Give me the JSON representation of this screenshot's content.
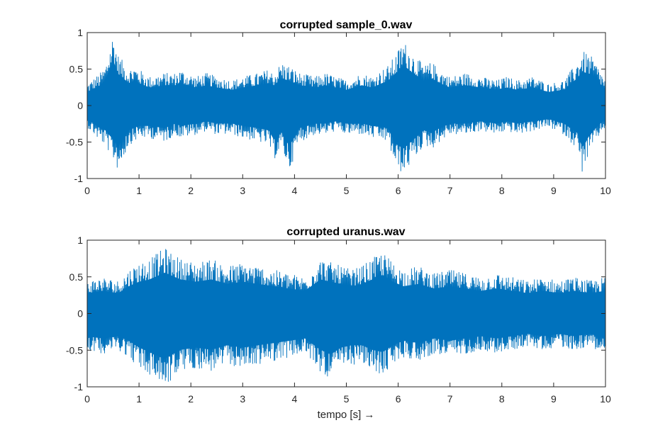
{
  "colors": {
    "signal": "#0072BD",
    "axis": "#262626",
    "background": "#ffffff"
  },
  "chart_data": [
    {
      "type": "line",
      "title": "corrupted sample_0.wav",
      "xlabel": "",
      "ylabel": "",
      "xlim": [
        0,
        10
      ],
      "ylim": [
        -1,
        1
      ],
      "xticks": [
        0,
        1,
        2,
        3,
        4,
        5,
        6,
        7,
        8,
        9,
        10
      ],
      "xtick_labels": [
        "0",
        "1",
        "2",
        "3",
        "4",
        "5",
        "6",
        "7",
        "8",
        "9",
        "10"
      ],
      "yticks": [
        -1,
        -0.5,
        0,
        0.5,
        1
      ],
      "ytick_labels": [
        "-1",
        "-0.5",
        "0",
        "0.5",
        "1"
      ],
      "grid": false,
      "series": [
        {
          "x": [
            0,
            0.25,
            0.35,
            0.5,
            0.6,
            0.8,
            0.9,
            1.0,
            1.2,
            1.5,
            1.7,
            1.8,
            2.1,
            2.3,
            2.5,
            2.8,
            3.0,
            3.3,
            3.5,
            3.6,
            3.75,
            3.9,
            4.1,
            4.4,
            4.6,
            4.8,
            5.0,
            5.3,
            5.5,
            5.8,
            5.95,
            6.1,
            6.25,
            6.5,
            6.65,
            6.8,
            7.0,
            7.3,
            7.6,
            7.9,
            8.1,
            8.3,
            8.6,
            8.9,
            9.2,
            9.45,
            9.55,
            9.7,
            9.85,
            10.0
          ],
          "upper": [
            0.3,
            0.45,
            0.55,
            1.0,
            0.7,
            0.5,
            0.55,
            0.5,
            0.4,
            0.45,
            0.45,
            0.5,
            0.4,
            0.45,
            0.4,
            0.35,
            0.4,
            0.45,
            0.5,
            0.45,
            0.6,
            0.55,
            0.45,
            0.4,
            0.45,
            0.4,
            0.35,
            0.45,
            0.4,
            0.55,
            0.7,
            0.9,
            0.75,
            0.55,
            0.6,
            0.5,
            0.4,
            0.45,
            0.4,
            0.35,
            0.4,
            0.35,
            0.4,
            0.3,
            0.35,
            0.6,
            0.75,
            0.7,
            0.55,
            0.35
          ],
          "lower": [
            -0.3,
            -0.5,
            -0.55,
            -0.75,
            -0.9,
            -0.55,
            -0.5,
            -0.45,
            -0.45,
            -0.5,
            -0.4,
            -0.45,
            -0.4,
            -0.35,
            -0.4,
            -0.4,
            -0.45,
            -0.5,
            -0.55,
            -0.75,
            -0.6,
            -0.9,
            -0.5,
            -0.4,
            -0.4,
            -0.35,
            -0.4,
            -0.4,
            -0.45,
            -0.5,
            -0.85,
            -0.95,
            -0.8,
            -0.55,
            -0.6,
            -0.5,
            -0.4,
            -0.4,
            -0.35,
            -0.4,
            -0.35,
            -0.4,
            -0.35,
            -0.3,
            -0.4,
            -0.6,
            -0.92,
            -0.65,
            -0.45,
            -0.3
          ]
        }
      ]
    },
    {
      "type": "line",
      "title": "corrupted uranus.wav",
      "xlabel": "tempo [s] →",
      "ylabel": "",
      "xlim": [
        0,
        10
      ],
      "ylim": [
        -1,
        1
      ],
      "xticks": [
        0,
        1,
        2,
        3,
        4,
        5,
        6,
        7,
        8,
        9,
        10
      ],
      "xtick_labels": [
        "0",
        "1",
        "2",
        "3",
        "4",
        "5",
        "6",
        "7",
        "8",
        "9",
        "10"
      ],
      "yticks": [
        -1,
        -0.5,
        0,
        0.5,
        1
      ],
      "ytick_labels": [
        "-1",
        "-0.5",
        "0",
        "0.5",
        "1"
      ],
      "grid": false,
      "series": [
        {
          "x": [
            0,
            0.3,
            0.6,
            0.8,
            1.0,
            1.2,
            1.5,
            1.8,
            2.1,
            2.4,
            2.7,
            3.0,
            3.3,
            3.6,
            3.9,
            4.2,
            4.5,
            4.7,
            4.9,
            5.1,
            5.3,
            5.5,
            5.7,
            5.9,
            6.1,
            6.4,
            6.7,
            7.0,
            7.3,
            7.6,
            7.9,
            8.2,
            8.5,
            8.8,
            9.1,
            9.4,
            9.7,
            10.0
          ],
          "upper": [
            0.45,
            0.5,
            0.45,
            0.6,
            0.7,
            0.75,
            0.9,
            0.75,
            0.7,
            0.75,
            0.65,
            0.7,
            0.65,
            0.6,
            0.55,
            0.5,
            0.75,
            0.7,
            0.65,
            0.6,
            0.65,
            0.75,
            0.85,
            0.7,
            0.6,
            0.65,
            0.55,
            0.6,
            0.55,
            0.5,
            0.55,
            0.5,
            0.45,
            0.5,
            0.45,
            0.5,
            0.45,
            0.5
          ],
          "lower": [
            -0.5,
            -0.55,
            -0.5,
            -0.6,
            -0.75,
            -0.85,
            -1.0,
            -0.8,
            -0.75,
            -0.8,
            -0.7,
            -0.75,
            -0.7,
            -0.65,
            -0.6,
            -0.55,
            -0.8,
            -0.9,
            -0.75,
            -0.7,
            -0.7,
            -0.8,
            -0.85,
            -0.7,
            -0.6,
            -0.65,
            -0.55,
            -0.6,
            -0.55,
            -0.5,
            -0.55,
            -0.5,
            -0.45,
            -0.5,
            -0.45,
            -0.5,
            -0.45,
            -0.55
          ]
        }
      ]
    }
  ]
}
